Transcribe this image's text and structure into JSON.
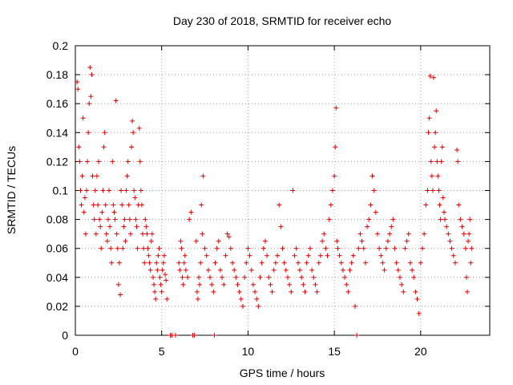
{
  "chart_data": {
    "type": "scatter",
    "title": "Day 230 of 2018, SRMTID for receiver echo",
    "xlabel": "GPS time / hours",
    "ylabel": "SRMTID / TECUs",
    "xlim": [
      0,
      24
    ],
    "ylim": [
      0,
      0.2
    ],
    "xticks": [
      0,
      5,
      10,
      15,
      20
    ],
    "xtick_labels": [
      "0",
      "5",
      "10",
      "15",
      "20"
    ],
    "yticks": [
      0,
      0.02,
      0.04,
      0.06,
      0.08,
      0.1,
      0.12,
      0.14,
      0.16,
      0.18,
      0.2
    ],
    "ytick_labels": [
      "0",
      "0.02",
      "0.04",
      "0.06",
      "0.08",
      "0.1",
      "0.12",
      "0.14",
      "0.16",
      "0.18",
      "0.2"
    ],
    "grid": true,
    "marker": "+",
    "color": "#e00000",
    "series": [
      {
        "name": "SRMTID",
        "points": [
          [
            0.1,
            0.175
          ],
          [
            0.15,
            0.17
          ],
          [
            0.2,
            0.13
          ],
          [
            0.25,
            0.12
          ],
          [
            0.3,
            0.1
          ],
          [
            0.35,
            0.09
          ],
          [
            0.4,
            0.11
          ],
          [
            0.45,
            0.15
          ],
          [
            0.5,
            0.085
          ],
          [
            0.55,
            0.095
          ],
          [
            0.6,
            0.07
          ],
          [
            0.65,
            0.1
          ],
          [
            0.7,
            0.12
          ],
          [
            0.75,
            0.14
          ],
          [
            0.8,
            0.16
          ],
          [
            0.85,
            0.185
          ],
          [
            0.9,
            0.165
          ],
          [
            0.95,
            0.18
          ],
          [
            1.0,
            0.11
          ],
          [
            1.05,
            0.09
          ],
          [
            1.1,
            0.08
          ],
          [
            1.15,
            0.1
          ],
          [
            1.2,
            0.07
          ],
          [
            1.25,
            0.11
          ],
          [
            1.3,
            0.09
          ],
          [
            1.35,
            0.12
          ],
          [
            1.4,
            0.08
          ],
          [
            1.45,
            0.075
          ],
          [
            1.5,
            0.06
          ],
          [
            1.55,
            0.085
          ],
          [
            1.6,
            0.1
          ],
          [
            1.65,
            0.13
          ],
          [
            1.7,
            0.14
          ],
          [
            1.75,
            0.09
          ],
          [
            1.8,
            0.07
          ],
          [
            1.85,
            0.065
          ],
          [
            1.9,
            0.08
          ],
          [
            1.95,
            0.1
          ],
          [
            2.0,
            0.075
          ],
          [
            2.05,
            0.06
          ],
          [
            2.1,
            0.05
          ],
          [
            2.15,
            0.12
          ],
          [
            2.2,
            0.09
          ],
          [
            2.25,
            0.085
          ],
          [
            2.3,
            0.08
          ],
          [
            2.35,
            0.162
          ],
          [
            2.4,
            0.07
          ],
          [
            2.45,
            0.06
          ],
          [
            2.5,
            0.035
          ],
          [
            2.55,
            0.05
          ],
          [
            2.6,
            0.028
          ],
          [
            2.65,
            0.1
          ],
          [
            2.7,
            0.09
          ],
          [
            2.75,
            0.06
          ],
          [
            2.8,
            0.075
          ],
          [
            2.85,
            0.08
          ],
          [
            2.9,
            0.065
          ],
          [
            2.95,
            0.1
          ],
          [
            3.0,
            0.11
          ],
          [
            3.05,
            0.12
          ],
          [
            3.1,
            0.09
          ],
          [
            3.15,
            0.08
          ],
          [
            3.2,
            0.07
          ],
          [
            3.25,
            0.13
          ],
          [
            3.3,
            0.148
          ],
          [
            3.35,
            0.14
          ],
          [
            3.4,
            0.1
          ],
          [
            3.45,
            0.095
          ],
          [
            3.5,
            0.08
          ],
          [
            3.55,
            0.075
          ],
          [
            3.6,
            0.06
          ],
          [
            3.65,
            0.09
          ],
          [
            3.7,
            0.143
          ],
          [
            3.75,
            0.12
          ],
          [
            3.8,
            0.1
          ],
          [
            3.85,
            0.09
          ],
          [
            3.9,
            0.07
          ],
          [
            3.95,
            0.06
          ],
          [
            4.0,
            0.05
          ],
          [
            4.05,
            0.08
          ],
          [
            4.1,
            0.075
          ],
          [
            4.15,
            0.07
          ],
          [
            4.2,
            0.06
          ],
          [
            4.25,
            0.055
          ],
          [
            4.3,
            0.05
          ],
          [
            4.35,
            0.045
          ],
          [
            4.4,
            0.065
          ],
          [
            4.45,
            0.07
          ],
          [
            4.5,
            0.04
          ],
          [
            4.55,
            0.035
          ],
          [
            4.6,
            0.03
          ],
          [
            4.65,
            0.025
          ],
          [
            4.7,
            0.05
          ],
          [
            4.75,
            0.045
          ],
          [
            4.8,
            0.055
          ],
          [
            4.85,
            0.06
          ],
          [
            4.9,
            0.04
          ],
          [
            4.95,
            0.035
          ],
          [
            5.0,
            0.03
          ],
          [
            5.05,
            0.045
          ],
          [
            5.1,
            0.05
          ],
          [
            5.15,
            0.055
          ],
          [
            5.2,
            0.042
          ],
          [
            5.25,
            0.038
          ],
          [
            5.3,
            0.025
          ],
          [
            5.5,
            0.0
          ],
          [
            5.6,
            0.0
          ],
          [
            5.8,
            0.0
          ],
          [
            6.0,
            0.05
          ],
          [
            6.05,
            0.045
          ],
          [
            6.1,
            0.065
          ],
          [
            6.15,
            0.06
          ],
          [
            6.2,
            0.04
          ],
          [
            6.25,
            0.035
          ],
          [
            6.3,
            0.05
          ],
          [
            6.35,
            0.055
          ],
          [
            6.4,
            0.045
          ],
          [
            6.5,
            0.04
          ],
          [
            6.6,
            0.08
          ],
          [
            6.7,
            0.085
          ],
          [
            6.8,
            0.0
          ],
          [
            6.9,
            0.0
          ],
          [
            7.0,
            0.065
          ],
          [
            7.05,
            0.03
          ],
          [
            7.1,
            0.025
          ],
          [
            7.15,
            0.04
          ],
          [
            7.2,
            0.035
          ],
          [
            7.25,
            0.05
          ],
          [
            7.3,
            0.09
          ],
          [
            7.35,
            0.07
          ],
          [
            7.4,
            0.11
          ],
          [
            7.5,
            0.06
          ],
          [
            7.6,
            0.055
          ],
          [
            7.7,
            0.045
          ],
          [
            7.8,
            0.04
          ],
          [
            7.9,
            0.035
          ],
          [
            8.0,
            0.03
          ],
          [
            8.05,
            0.0
          ],
          [
            8.1,
            0.05
          ],
          [
            8.2,
            0.06
          ],
          [
            8.3,
            0.065
          ],
          [
            8.4,
            0.045
          ],
          [
            8.5,
            0.04
          ],
          [
            8.6,
            0.035
          ],
          [
            8.7,
            0.055
          ],
          [
            8.8,
            0.07
          ],
          [
            8.9,
            0.068
          ],
          [
            9.0,
            0.06
          ],
          [
            9.1,
            0.05
          ],
          [
            9.2,
            0.045
          ],
          [
            9.3,
            0.04
          ],
          [
            9.4,
            0.035
          ],
          [
            9.5,
            0.03
          ],
          [
            9.6,
            0.025
          ],
          [
            9.7,
            0.02
          ],
          [
            9.8,
            0.04
          ],
          [
            9.9,
            0.05
          ],
          [
            10.0,
            0.06
          ],
          [
            10.1,
            0.055
          ],
          [
            10.2,
            0.045
          ],
          [
            10.3,
            0.035
          ],
          [
            10.4,
            0.03
          ],
          [
            10.5,
            0.025
          ],
          [
            10.6,
            0.02
          ],
          [
            10.7,
            0.04
          ],
          [
            10.8,
            0.05
          ],
          [
            10.9,
            0.06
          ],
          [
            11.0,
            0.065
          ],
          [
            11.1,
            0.055
          ],
          [
            11.2,
            0.04
          ],
          [
            11.3,
            0.035
          ],
          [
            11.4,
            0.03
          ],
          [
            11.5,
            0.045
          ],
          [
            11.6,
            0.05
          ],
          [
            11.7,
            0.055
          ],
          [
            11.8,
            0.09
          ],
          [
            11.9,
            0.075
          ],
          [
            12.0,
            0.06
          ],
          [
            12.1,
            0.05
          ],
          [
            12.2,
            0.045
          ],
          [
            12.3,
            0.04
          ],
          [
            12.4,
            0.035
          ],
          [
            12.5,
            0.03
          ],
          [
            12.6,
            0.1
          ],
          [
            12.7,
            0.055
          ],
          [
            12.8,
            0.06
          ],
          [
            12.9,
            0.05
          ],
          [
            13.0,
            0.045
          ],
          [
            13.1,
            0.04
          ],
          [
            13.2,
            0.035
          ],
          [
            13.3,
            0.03
          ],
          [
            13.4,
            0.05
          ],
          [
            13.5,
            0.055
          ],
          [
            13.6,
            0.06
          ],
          [
            13.7,
            0.045
          ],
          [
            13.8,
            0.04
          ],
          [
            13.9,
            0.035
          ],
          [
            14.0,
            0.03
          ],
          [
            14.1,
            0.05
          ],
          [
            14.2,
            0.055
          ],
          [
            14.3,
            0.065
          ],
          [
            14.4,
            0.07
          ],
          [
            14.5,
            0.06
          ],
          [
            14.6,
            0.055
          ],
          [
            14.7,
            0.08
          ],
          [
            14.8,
            0.09
          ],
          [
            14.9,
            0.1
          ],
          [
            15.0,
            0.11
          ],
          [
            15.05,
            0.13
          ],
          [
            15.1,
            0.157
          ],
          [
            15.15,
            0.065
          ],
          [
            15.2,
            0.06
          ],
          [
            15.3,
            0.055
          ],
          [
            15.4,
            0.05
          ],
          [
            15.5,
            0.045
          ],
          [
            15.6,
            0.04
          ],
          [
            15.7,
            0.035
          ],
          [
            15.8,
            0.03
          ],
          [
            15.9,
            0.045
          ],
          [
            16.0,
            0.05
          ],
          [
            16.1,
            0.055
          ],
          [
            16.2,
            0.02
          ],
          [
            16.3,
            0.0
          ],
          [
            16.4,
            0.06
          ],
          [
            16.5,
            0.07
          ],
          [
            16.6,
            0.065
          ],
          [
            16.7,
            0.06
          ],
          [
            16.8,
            0.05
          ],
          [
            16.9,
            0.075
          ],
          [
            17.0,
            0.08
          ],
          [
            17.1,
            0.09
          ],
          [
            17.2,
            0.11
          ],
          [
            17.3,
            0.1
          ],
          [
            17.4,
            0.085
          ],
          [
            17.5,
            0.07
          ],
          [
            17.6,
            0.06
          ],
          [
            17.7,
            0.055
          ],
          [
            17.8,
            0.05
          ],
          [
            17.9,
            0.045
          ],
          [
            18.0,
            0.06
          ],
          [
            18.1,
            0.065
          ],
          [
            18.2,
            0.07
          ],
          [
            18.3,
            0.075
          ],
          [
            18.4,
            0.08
          ],
          [
            18.5,
            0.06
          ],
          [
            18.6,
            0.05
          ],
          [
            18.7,
            0.045
          ],
          [
            18.8,
            0.04
          ],
          [
            18.9,
            0.035
          ],
          [
            19.0,
            0.03
          ],
          [
            19.1,
            0.06
          ],
          [
            19.2,
            0.065
          ],
          [
            19.3,
            0.07
          ],
          [
            19.4,
            0.05
          ],
          [
            19.5,
            0.045
          ],
          [
            19.6,
            0.04
          ],
          [
            19.7,
            0.03
          ],
          [
            19.8,
            0.025
          ],
          [
            19.9,
            0.015
          ],
          [
            20.0,
            0.05
          ],
          [
            20.1,
            0.06
          ],
          [
            20.2,
            0.07
          ],
          [
            20.3,
            0.09
          ],
          [
            20.4,
            0.1
          ],
          [
            20.45,
            0.14
          ],
          [
            20.5,
            0.15
          ],
          [
            20.55,
            0.179
          ],
          [
            20.6,
            0.12
          ],
          [
            20.65,
            0.11
          ],
          [
            20.7,
            0.1
          ],
          [
            20.75,
            0.178
          ],
          [
            20.8,
            0.13
          ],
          [
            20.85,
            0.14
          ],
          [
            20.9,
            0.155
          ],
          [
            20.95,
            0.12
          ],
          [
            21.0,
            0.11
          ],
          [
            21.05,
            0.1
          ],
          [
            21.1,
            0.09
          ],
          [
            21.15,
            0.08
          ],
          [
            21.2,
            0.12
          ],
          [
            21.25,
            0.13
          ],
          [
            21.3,
            0.095
          ],
          [
            21.35,
            0.085
          ],
          [
            21.4,
            0.08
          ],
          [
            21.5,
            0.075
          ],
          [
            21.6,
            0.07
          ],
          [
            21.7,
            0.065
          ],
          [
            21.8,
            0.06
          ],
          [
            21.9,
            0.055
          ],
          [
            22.0,
            0.05
          ],
          [
            22.1,
            0.128
          ],
          [
            22.15,
            0.12
          ],
          [
            22.2,
            0.09
          ],
          [
            22.3,
            0.08
          ],
          [
            22.4,
            0.075
          ],
          [
            22.5,
            0.07
          ],
          [
            22.6,
            0.06
          ],
          [
            22.65,
            0.04
          ],
          [
            22.7,
            0.03
          ],
          [
            22.75,
            0.065
          ],
          [
            22.8,
            0.07
          ],
          [
            22.85,
            0.08
          ],
          [
            22.9,
            0.05
          ],
          [
            22.95,
            0.06
          ]
        ]
      }
    ]
  }
}
